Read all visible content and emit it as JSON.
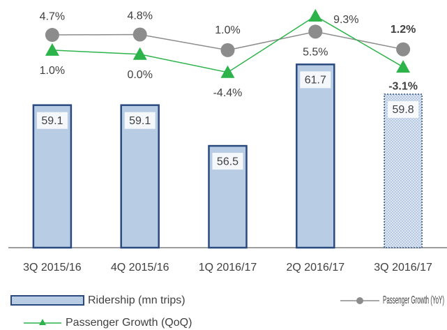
{
  "chart_data": {
    "type": "bar",
    "categories": [
      "3Q 2015/16",
      "4Q 2015/16",
      "1Q 2016/17",
      "2Q 2016/17",
      "3Q 2016/17"
    ],
    "ylim": [
      50,
      65.5
    ],
    "y2lim": [
      -47,
      12
    ],
    "series": [
      {
        "name": "Ridership (mn trips)",
        "type": "bar",
        "color": "#b8cce4",
        "values": [
          59.1,
          59.1,
          56.5,
          61.7,
          59.8
        ]
      },
      {
        "name": "Passenger Growth (YoY)",
        "type": "line",
        "axis": "y2",
        "color": "#8c8c8c",
        "values": [
          4.7,
          4.8,
          1.0,
          5.5,
          1.2
        ],
        "value_labels": [
          "4.7%",
          "4.8%",
          "1.0%",
          "5.5%",
          "1.2%"
        ]
      },
      {
        "name": "Passenger Growth (QoQ)",
        "type": "line",
        "axis": "y2",
        "color": "#2cb34a",
        "values": [
          1.0,
          0.0,
          -4.4,
          9.3,
          -3.1
        ],
        "value_labels": [
          "1.0%",
          "0.0%",
          "-4.4%",
          "9.3%",
          "-3.1%"
        ]
      }
    ]
  }
}
